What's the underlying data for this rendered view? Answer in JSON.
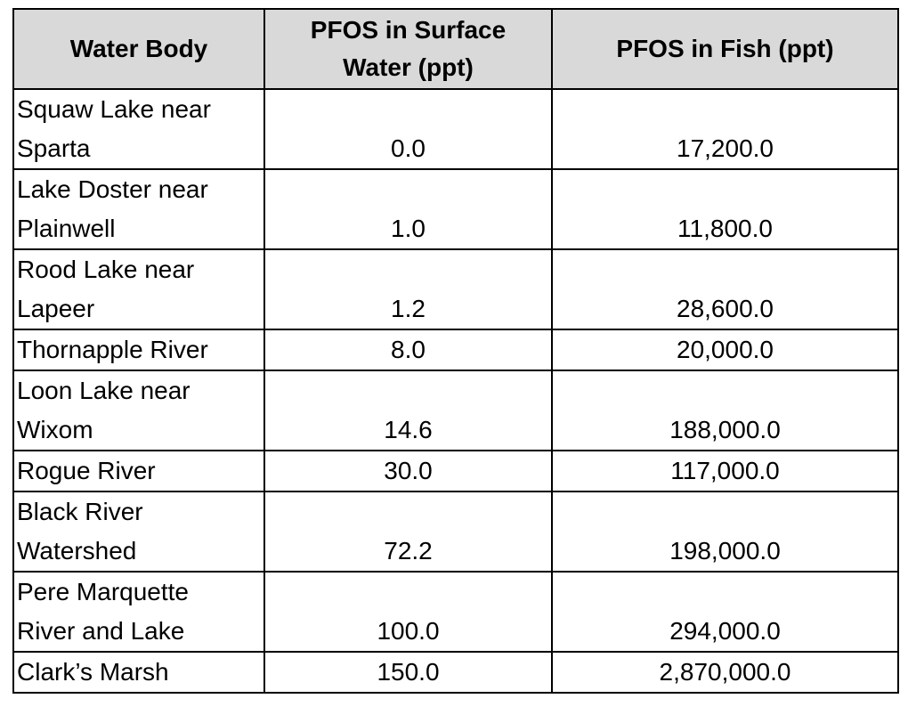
{
  "table": {
    "headers": [
      "Water Body",
      "PFOS in Surface Water (ppt)",
      "PFOS in Fish (ppt)"
    ],
    "rows": [
      {
        "name": "Squaw Lake near Sparta",
        "water": "0.0",
        "fish": "17,200.0"
      },
      {
        "name": "Lake Doster near Plainwell",
        "water": "1.0",
        "fish": "11,800.0"
      },
      {
        "name": "Rood Lake near Lapeer",
        "water": "1.2",
        "fish": "28,600.0"
      },
      {
        "name": "Thornapple River",
        "water": "8.0",
        "fish": "20,000.0"
      },
      {
        "name": "Loon Lake near Wixom",
        "water": "14.6",
        "fish": "188,000.0"
      },
      {
        "name": "Rogue River",
        "water": "30.0",
        "fish": "117,000.0"
      },
      {
        "name": "Black River Watershed",
        "water": "72.2",
        "fish": "198,000.0"
      },
      {
        "name": "Pere Marquette River and Lake",
        "water": "100.0",
        "fish": "294,000.0"
      },
      {
        "name": "Clark’s Marsh",
        "water": "150.0",
        "fish": "2,870,000.0"
      }
    ]
  }
}
